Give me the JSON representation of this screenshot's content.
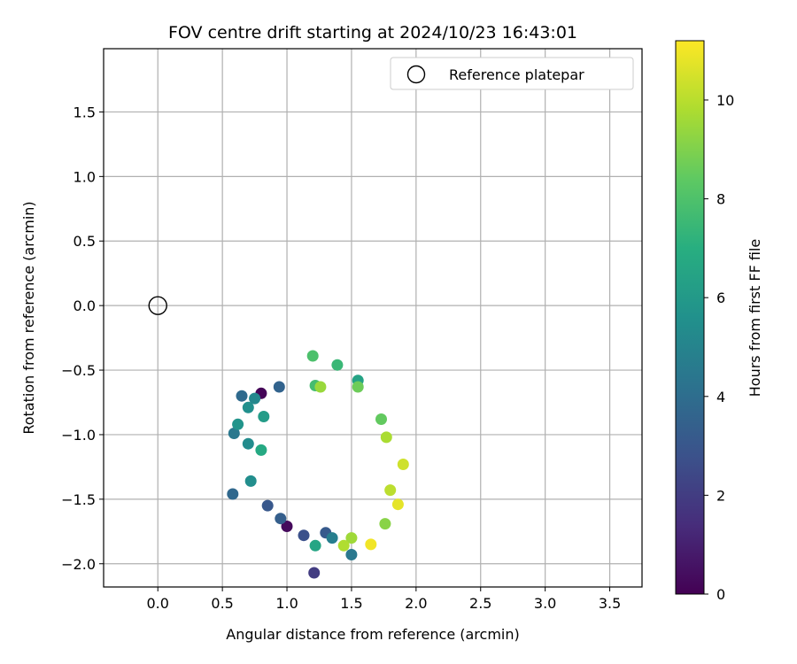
{
  "chart_data": {
    "type": "scatter",
    "title": "FOV centre drift starting at 2024/10/23 16:43:01",
    "xlabel": "Angular distance from reference (arcmin)",
    "ylabel": "Rotation from reference (arcmin)",
    "xlim": [
      -0.42,
      3.75
    ],
    "ylim": [
      -2.18,
      1.99
    ],
    "xticks": [
      0.0,
      0.5,
      1.0,
      1.5,
      2.0,
      2.5,
      3.0,
      3.5
    ],
    "yticks": [
      -2.0,
      -1.5,
      -1.0,
      -0.5,
      0.0,
      0.5,
      1.0,
      1.5
    ],
    "xtick_labels": [
      "0.0",
      "0.5",
      "1.0",
      "1.5",
      "2.0",
      "2.5",
      "3.0",
      "3.5"
    ],
    "ytick_labels": [
      "−2.0",
      "−1.5",
      "−1.0",
      "−0.5",
      "0.0",
      "0.5",
      "1.0",
      "1.5"
    ],
    "grid": true,
    "legend": {
      "placement": "upper right",
      "entries": [
        {
          "label": "Reference platepar",
          "marker": "open-circle"
        }
      ]
    },
    "reference_point": {
      "x": 0.0,
      "y": 0.0
    },
    "colorbar": {
      "label": "Hours from first FF file",
      "colormap": "viridis",
      "range": [
        0,
        11.2
      ],
      "ticks": [
        0,
        2,
        4,
        6,
        8,
        10
      ],
      "tick_labels": [
        "0",
        "2",
        "4",
        "6",
        "8",
        "10"
      ]
    },
    "series": [
      {
        "color_by": "hours",
        "points": [
          {
            "x": 0.8,
            "y": -0.68,
            "c": 0.1
          },
          {
            "x": 1.0,
            "y": -1.71,
            "c": 0.3
          },
          {
            "x": 1.21,
            "y": -2.07,
            "c": 2.0
          },
          {
            "x": 0.58,
            "y": -1.46,
            "c": 3.8
          },
          {
            "x": 0.65,
            "y": -0.7,
            "c": 3.9
          },
          {
            "x": 0.59,
            "y": -0.99,
            "c": 4.5
          },
          {
            "x": 0.94,
            "y": -0.63,
            "c": 3.6
          },
          {
            "x": 0.85,
            "y": -1.55,
            "c": 3.1
          },
          {
            "x": 0.95,
            "y": -1.65,
            "c": 3.4
          },
          {
            "x": 1.13,
            "y": -1.78,
            "c": 2.8
          },
          {
            "x": 1.3,
            "y": -1.76,
            "c": 3.2
          },
          {
            "x": 1.35,
            "y": -1.8,
            "c": 4.8
          },
          {
            "x": 1.22,
            "y": -1.86,
            "c": 6.6
          },
          {
            "x": 1.5,
            "y": -1.93,
            "c": 4.5
          },
          {
            "x": 1.2,
            "y": -0.39,
            "c": 8.0
          },
          {
            "x": 1.39,
            "y": -0.46,
            "c": 7.5
          },
          {
            "x": 1.55,
            "y": -0.58,
            "c": 6.5
          },
          {
            "x": 1.9,
            "y": -1.23,
            "c": 10.4
          },
          {
            "x": 1.86,
            "y": -1.54,
            "c": 10.8
          },
          {
            "x": 1.65,
            "y": -1.85,
            "c": 11.0
          },
          {
            "x": 1.44,
            "y": -1.86,
            "c": 9.9
          },
          {
            "x": 1.5,
            "y": -1.8,
            "c": 9.6
          },
          {
            "x": 0.7,
            "y": -0.79,
            "c": 5.6
          },
          {
            "x": 0.75,
            "y": -0.72,
            "c": 5.2
          },
          {
            "x": 0.62,
            "y": -0.92,
            "c": 5.8
          },
          {
            "x": 0.7,
            "y": -1.07,
            "c": 5.4
          },
          {
            "x": 0.72,
            "y": -1.36,
            "c": 5.5
          },
          {
            "x": 1.8,
            "y": -1.43,
            "c": 10.1
          },
          {
            "x": 1.77,
            "y": -1.02,
            "c": 9.8
          },
          {
            "x": 1.73,
            "y": -0.88,
            "c": 8.5
          },
          {
            "x": 1.76,
            "y": -1.69,
            "c": 9.2
          },
          {
            "x": 1.55,
            "y": -0.63,
            "c": 8.7
          },
          {
            "x": 1.26,
            "y": -0.63,
            "c": 9.5
          },
          {
            "x": 1.22,
            "y": -0.62,
            "c": 7.8
          },
          {
            "x": 0.82,
            "y": -0.86,
            "c": 6.2
          },
          {
            "x": 0.8,
            "y": -1.12,
            "c": 6.8
          }
        ]
      }
    ]
  }
}
